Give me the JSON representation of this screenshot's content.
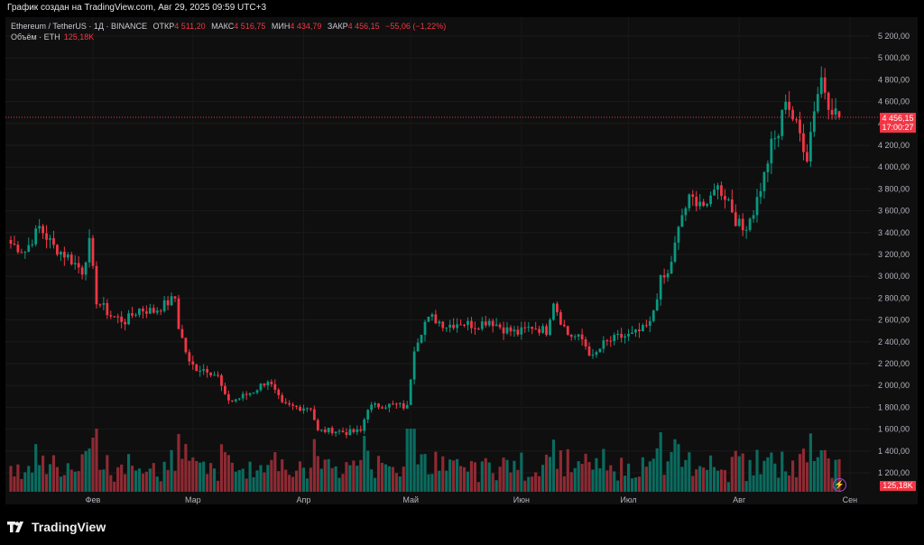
{
  "caption": "График создан на TradingView.com, Авг 29, 2025 09:59 UTC+3",
  "legend": {
    "symbol": "Ethereum / TetherUS · 1Д · BINANCE",
    "open_label": "ОТКР",
    "open": "4 511,20",
    "high_label": "МАКС",
    "high": "4 516,75",
    "low_label": "МИН",
    "low": "4 434,79",
    "close_label": "ЗАКР",
    "close": "4 456,15",
    "change": "−55,06 (−1,22%)",
    "volume_label": "Объём · ETH",
    "volume": "125,18K"
  },
  "last_price": {
    "price": "4 456,15",
    "countdown": "17:00:27"
  },
  "volume_tag": "125,18K",
  "brand": "TradingView",
  "colors": {
    "up": "#089981",
    "down": "#f23645",
    "up_vol": "#0b6b5f",
    "down_vol": "#8e2a33"
  },
  "chart_data": {
    "type": "candlestick",
    "title": "Ethereum / TetherUS · 1Д · BINANCE",
    "ylim": [
      1100,
      5300
    ],
    "yticks": [
      1200,
      1400,
      1600,
      1800,
      2000,
      2200,
      2400,
      2600,
      2800,
      3000,
      3200,
      3400,
      3600,
      3800,
      4000,
      4200,
      4400,
      4600,
      4800,
      5000,
      5200
    ],
    "ytick_labels": [
      "1 200,00",
      "1 400,00",
      "1 600,00",
      "1 800,00",
      "2 000,00",
      "2 200,00",
      "2 400,00",
      "2 600,00",
      "2 800,00",
      "3 000,00",
      "3 200,00",
      "3 400,00",
      "3 600,00",
      "3 800,00",
      "4 000,00",
      "4 200,00",
      "4 400,00",
      "4 600,00",
      "4 800,00",
      "5 000,00",
      "5 200,00"
    ],
    "months": [
      {
        "label": "Фев",
        "day": 23
      },
      {
        "label": "Мар",
        "day": 51
      },
      {
        "label": "Апр",
        "day": 82
      },
      {
        "label": "Май",
        "day": 112
      },
      {
        "label": "Июн",
        "day": 143
      },
      {
        "label": "Июл",
        "day": 173
      },
      {
        "label": "Авг",
        "day": 204
      },
      {
        "label": "Сен",
        "day": 235
      }
    ],
    "anchors": [
      [
        0,
        3300
      ],
      [
        4,
        3230
      ],
      [
        8,
        3450
      ],
      [
        12,
        3270
      ],
      [
        16,
        3180
      ],
      [
        20,
        3050
      ],
      [
        22,
        3300
      ],
      [
        24,
        2780
      ],
      [
        28,
        2640
      ],
      [
        32,
        2590
      ],
      [
        36,
        2700
      ],
      [
        40,
        2680
      ],
      [
        44,
        2760
      ],
      [
        46,
        2800
      ],
      [
        47,
        2540
      ],
      [
        50,
        2200
      ],
      [
        52,
        2160
      ],
      [
        55,
        2150
      ],
      [
        58,
        2080
      ],
      [
        60,
        1890
      ],
      [
        62,
        1860
      ],
      [
        65,
        1900
      ],
      [
        68,
        1950
      ],
      [
        72,
        2050
      ],
      [
        76,
        1820
      ],
      [
        80,
        1800
      ],
      [
        84,
        1800
      ],
      [
        86,
        1580
      ],
      [
        90,
        1590
      ],
      [
        94,
        1570
      ],
      [
        98,
        1580
      ],
      [
        100,
        1800
      ],
      [
        104,
        1820
      ],
      [
        108,
        1820
      ],
      [
        111,
        1800
      ],
      [
        113,
        2350
      ],
      [
        116,
        2580
      ],
      [
        118,
        2620
      ],
      [
        122,
        2550
      ],
      [
        126,
        2580
      ],
      [
        130,
        2550
      ],
      [
        134,
        2600
      ],
      [
        138,
        2520
      ],
      [
        142,
        2480
      ],
      [
        146,
        2540
      ],
      [
        150,
        2500
      ],
      [
        152,
        2780
      ],
      [
        154,
        2600
      ],
      [
        156,
        2470
      ],
      [
        160,
        2420
      ],
      [
        163,
        2250
      ],
      [
        166,
        2380
      ],
      [
        170,
        2440
      ],
      [
        174,
        2460
      ],
      [
        177,
        2510
      ],
      [
        179,
        2560
      ],
      [
        182,
        2960
      ],
      [
        184,
        3010
      ],
      [
        186,
        3280
      ],
      [
        188,
        3560
      ],
      [
        190,
        3700
      ],
      [
        193,
        3700
      ],
      [
        195,
        3600
      ],
      [
        197,
        3840
      ],
      [
        199,
        3780
      ],
      [
        201,
        3700
      ],
      [
        203,
        3520
      ],
      [
        205,
        3420
      ],
      [
        208,
        3600
      ],
      [
        211,
        3920
      ],
      [
        213,
        4200
      ],
      [
        215,
        4300
      ],
      [
        217,
        4650
      ],
      [
        219,
        4450
      ],
      [
        221,
        4300
      ],
      [
        223,
        4100
      ],
      [
        225,
        4550
      ],
      [
        227,
        4820
      ],
      [
        229,
        4600
      ],
      [
        231,
        4500
      ],
      [
        232,
        4456
      ]
    ],
    "last_candle": {
      "open": 4511.2,
      "high": 4516.75,
      "low": 4434.79,
      "close": 4456.15,
      "volume": "125,18K"
    },
    "volume_note": "Volume histogram along the bottom of the price pane, coloured by candle direction"
  }
}
